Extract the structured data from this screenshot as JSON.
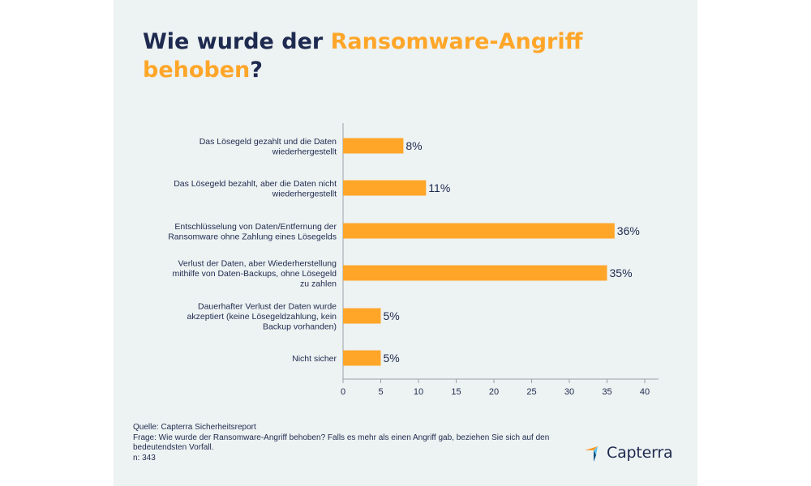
{
  "title": {
    "part1": "Wie wurde der ",
    "highlight1": "Ransomware-Angriff",
    "highlight2": "behoben",
    "part2": "?"
  },
  "chart_data": {
    "type": "bar",
    "orientation": "horizontal",
    "categories": [
      [
        "Das Lösegeld gezahlt und die Daten",
        "wiederhergestellt"
      ],
      [
        "Das Lösegeld bezahlt, aber die Daten nicht",
        "wiederhergestellt"
      ],
      [
        "Entschlüsselung von Daten/Entfernung der",
        "Ransomware ohne Zahlung eines Lösegelds"
      ],
      [
        "Verlust der Daten, aber Wiederherstellung",
        "mithilfe von Daten-Backups, ohne Lösegeld",
        "zu zahlen"
      ],
      [
        "Dauerhafter Verlust der Daten wurde",
        "akzeptiert (keine Lösegeldzahlung, kein",
        "Backup vorhanden)"
      ],
      [
        "Nicht sicher"
      ]
    ],
    "values": [
      8,
      11,
      36,
      35,
      5,
      5
    ],
    "value_labels": [
      "8%",
      "11%",
      "36%",
      "35%",
      "5%",
      "5%"
    ],
    "xlim": [
      0,
      40
    ],
    "xticks": [
      0,
      5,
      10,
      15,
      20,
      25,
      30,
      35,
      40
    ],
    "grid": false,
    "bar_color": "#ffa629",
    "text_color": "#1e2a4f"
  },
  "footer": {
    "source": "Quelle: Capterra Sicherheitsreport",
    "question_line1": "Frage: Wie wurde der Ransomware-Angriff behoben? Falls es mehr als einen Angriff gab, beziehen Sie sich auf den",
    "question_line2": "bedeutendsten Vorfall.",
    "n": "n: 343"
  },
  "logo": {
    "text": "Capterra",
    "icon": "capterra-arrow-icon",
    "colors": [
      "#ff9d28",
      "#68c5ed",
      "#044d80",
      "#e54747"
    ]
  }
}
